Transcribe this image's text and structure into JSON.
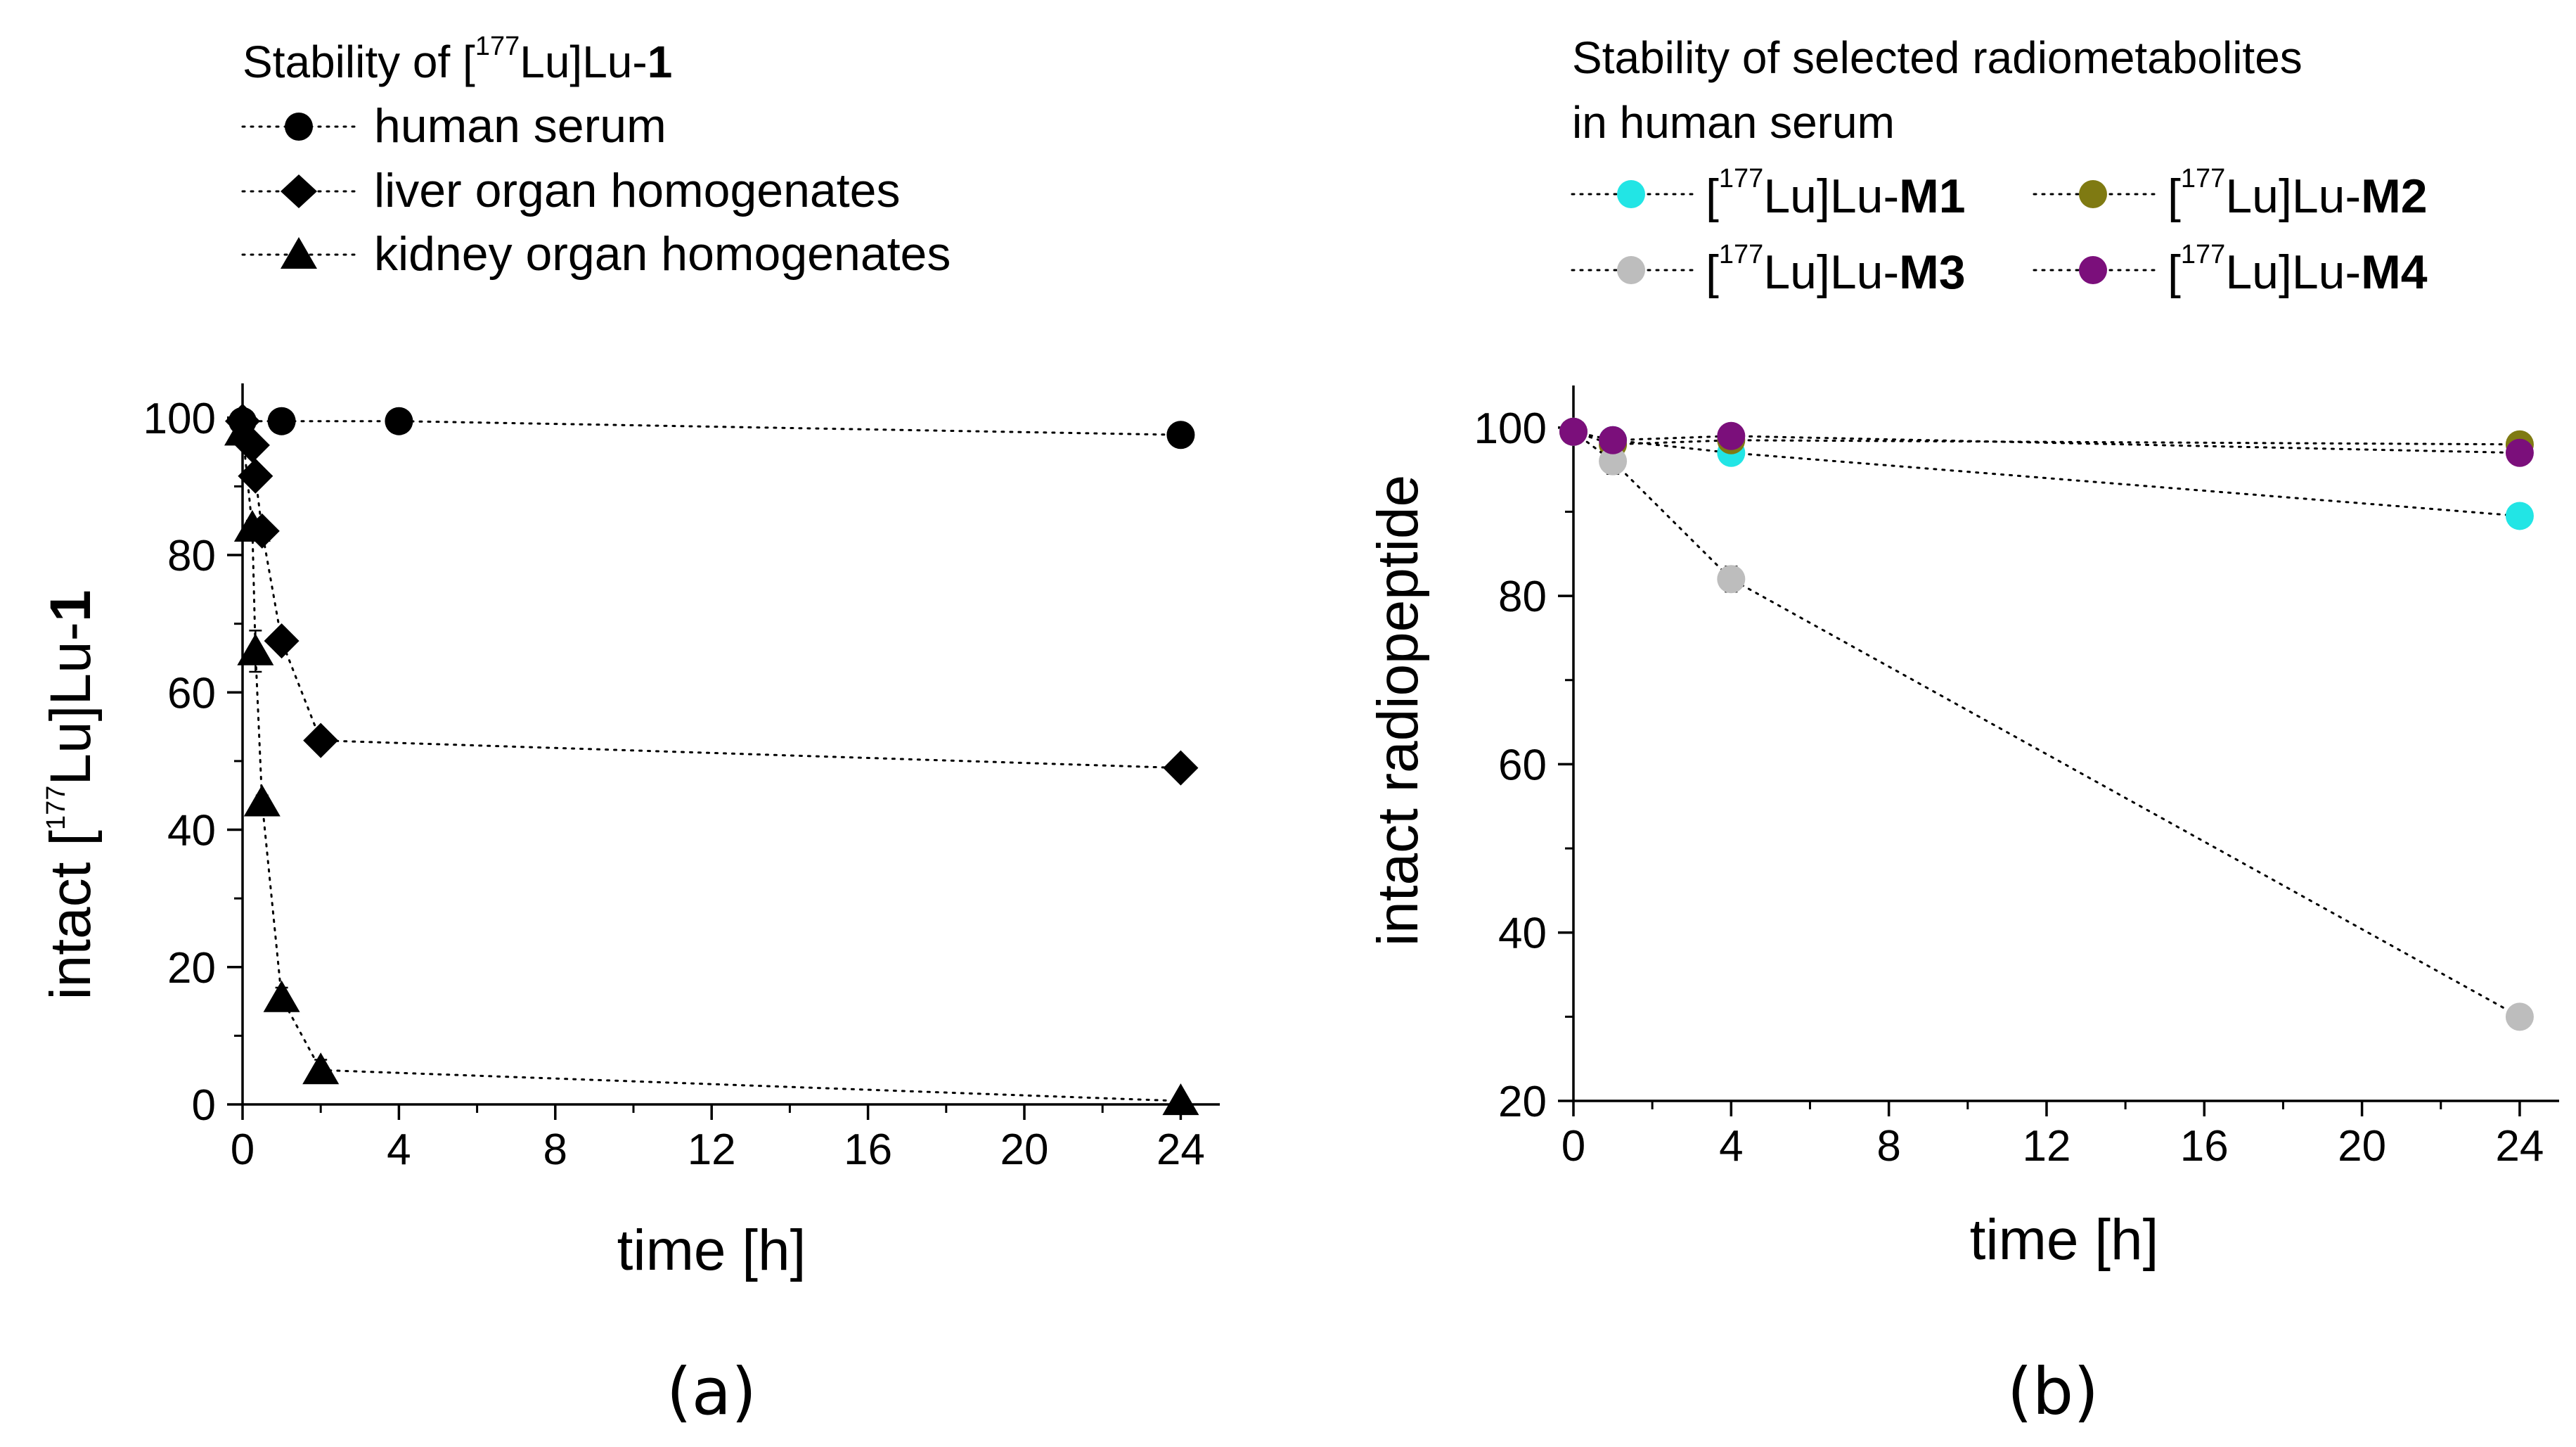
{
  "chart_data": [
    {
      "type": "scatter",
      "panel_label": "(a)",
      "legend_title_prefix": "Stability of [",
      "legend_title_sup": "177",
      "legend_title_mid": "Lu]Lu-",
      "legend_title_bold": "1",
      "xlabel": "time [h]",
      "ylabel_prefix": "intact [",
      "ylabel_sup": "177",
      "ylabel_mid": "Lu]Lu-",
      "ylabel_bold": "1",
      "xlim": [
        0,
        25
      ],
      "ylim": [
        0,
        105
      ],
      "xticks": [
        0,
        4,
        8,
        12,
        16,
        20,
        24
      ],
      "yticks": [
        0,
        20,
        40,
        60,
        80,
        100
      ],
      "line_style": "dotted",
      "series": [
        {
          "name": "human serum",
          "marker": "circle",
          "color": "#000000",
          "x": [
            0,
            1,
            4,
            24
          ],
          "y": [
            99.5,
            99.5,
            99.5,
            97.5
          ],
          "err": [
            0.5,
            0.5,
            0.8,
            0.5
          ]
        },
        {
          "name": "liver organ homogenates",
          "marker": "diamond",
          "color": "#000000",
          "x": [
            0,
            0.25,
            0.33,
            0.5,
            1,
            2,
            24
          ],
          "y": [
            99.5,
            96,
            91.5,
            83.5,
            67.5,
            53,
            49
          ],
          "err": [
            0.5,
            1,
            1,
            1.2,
            1,
            1,
            1
          ]
        },
        {
          "name": "kidney organ homogenates",
          "marker": "triangle",
          "color": "#000000",
          "x": [
            0,
            0.25,
            0.33,
            0.5,
            1,
            2,
            24
          ],
          "y": [
            98,
            84,
            66,
            44,
            15.5,
            5,
            0.5
          ],
          "err": [
            1,
            1,
            3,
            1,
            1.5,
            1.5,
            0.5
          ]
        }
      ]
    },
    {
      "type": "scatter",
      "panel_label": "(b)",
      "legend_title_line1": "Stability of selected radiometabolites",
      "legend_title_line2": "in human serum",
      "xlabel": "time [h]",
      "ylabel": "intact radiopeptide",
      "xlim": [
        0,
        25
      ],
      "ylim": [
        20,
        105
      ],
      "xticks": [
        0,
        4,
        8,
        12,
        16,
        20,
        24
      ],
      "yticks": [
        20,
        40,
        60,
        80,
        100
      ],
      "line_style": "dotted",
      "legend_prefix": "[",
      "legend_sup": "177",
      "legend_mid": "Lu]Lu-",
      "series": [
        {
          "name": "M1",
          "marker": "circle",
          "color": "#22e5e5",
          "x": [
            0,
            1,
            4,
            24
          ],
          "y": [
            99.5,
            98.5,
            97,
            89.5
          ],
          "err": [
            0.3,
            0.6,
            0.8,
            1
          ]
        },
        {
          "name": "M2",
          "marker": "circle",
          "color": "#7f7a12",
          "x": [
            0,
            1,
            4,
            24
          ],
          "y": [
            99.5,
            98,
            98.5,
            98
          ],
          "err": [
            0.3,
            0.6,
            0.6,
            0.6
          ]
        },
        {
          "name": "M3",
          "marker": "circle",
          "color": "#bdbdbd",
          "x": [
            0,
            1,
            4,
            24
          ],
          "y": [
            99.5,
            96,
            82,
            30
          ],
          "err": [
            0.3,
            1.5,
            1.5,
            1
          ]
        },
        {
          "name": "M4",
          "marker": "circle",
          "color": "#7b0f7b",
          "x": [
            0,
            1,
            4,
            24
          ],
          "y": [
            99.5,
            98.5,
            99,
            97
          ],
          "err": [
            0.3,
            0.5,
            0.5,
            0.8
          ]
        }
      ]
    }
  ]
}
